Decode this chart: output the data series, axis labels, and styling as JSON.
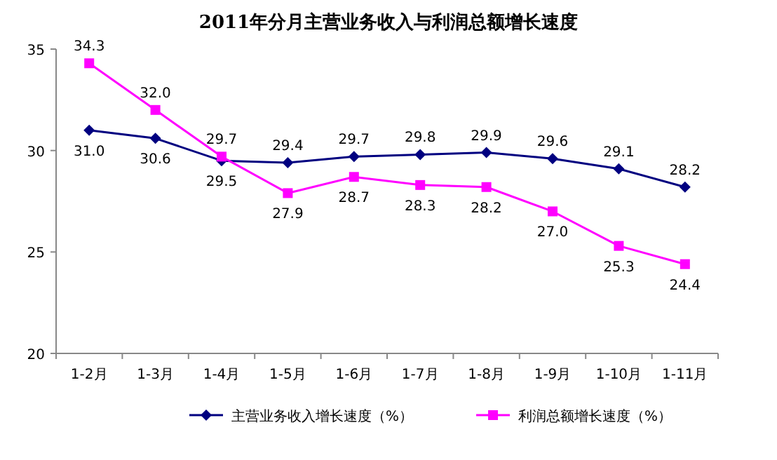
{
  "chart_data": {
    "type": "line",
    "title": "2011年分月主营业务收入与利润总额增长速度",
    "categories": [
      "1-2月",
      "1-3月",
      "1-4月",
      "1-5月",
      "1-6月",
      "1-7月",
      "1-8月",
      "1-9月",
      "1-10月",
      "1-11月"
    ],
    "series": [
      {
        "name": "主营业务收入增长速度（%）",
        "color": "#000080",
        "marker": "diamond",
        "values": [
          31.0,
          30.6,
          29.5,
          29.4,
          29.7,
          29.8,
          29.9,
          29.6,
          29.1,
          28.2
        ],
        "value_labels": [
          "31.0",
          "30.6",
          "29.5",
          "29.4",
          "29.7",
          "29.8",
          "29.9",
          "29.6",
          "29.1",
          "28.2"
        ]
      },
      {
        "name": "利润总额增长速度（%）",
        "color": "#ff00ff",
        "marker": "square",
        "values": [
          34.3,
          32.0,
          29.7,
          27.9,
          28.7,
          28.3,
          28.2,
          27.0,
          25.3,
          24.4
        ],
        "value_labels": [
          "34.3",
          "32.0",
          "29.7",
          "27.9",
          "28.7",
          "28.3",
          "28.2",
          "27.0",
          "25.3",
          "24.4"
        ]
      }
    ],
    "ylim": [
      20,
      35
    ],
    "yticks": [
      20,
      25,
      30,
      35
    ],
    "grid": false,
    "legend": "bottom"
  }
}
